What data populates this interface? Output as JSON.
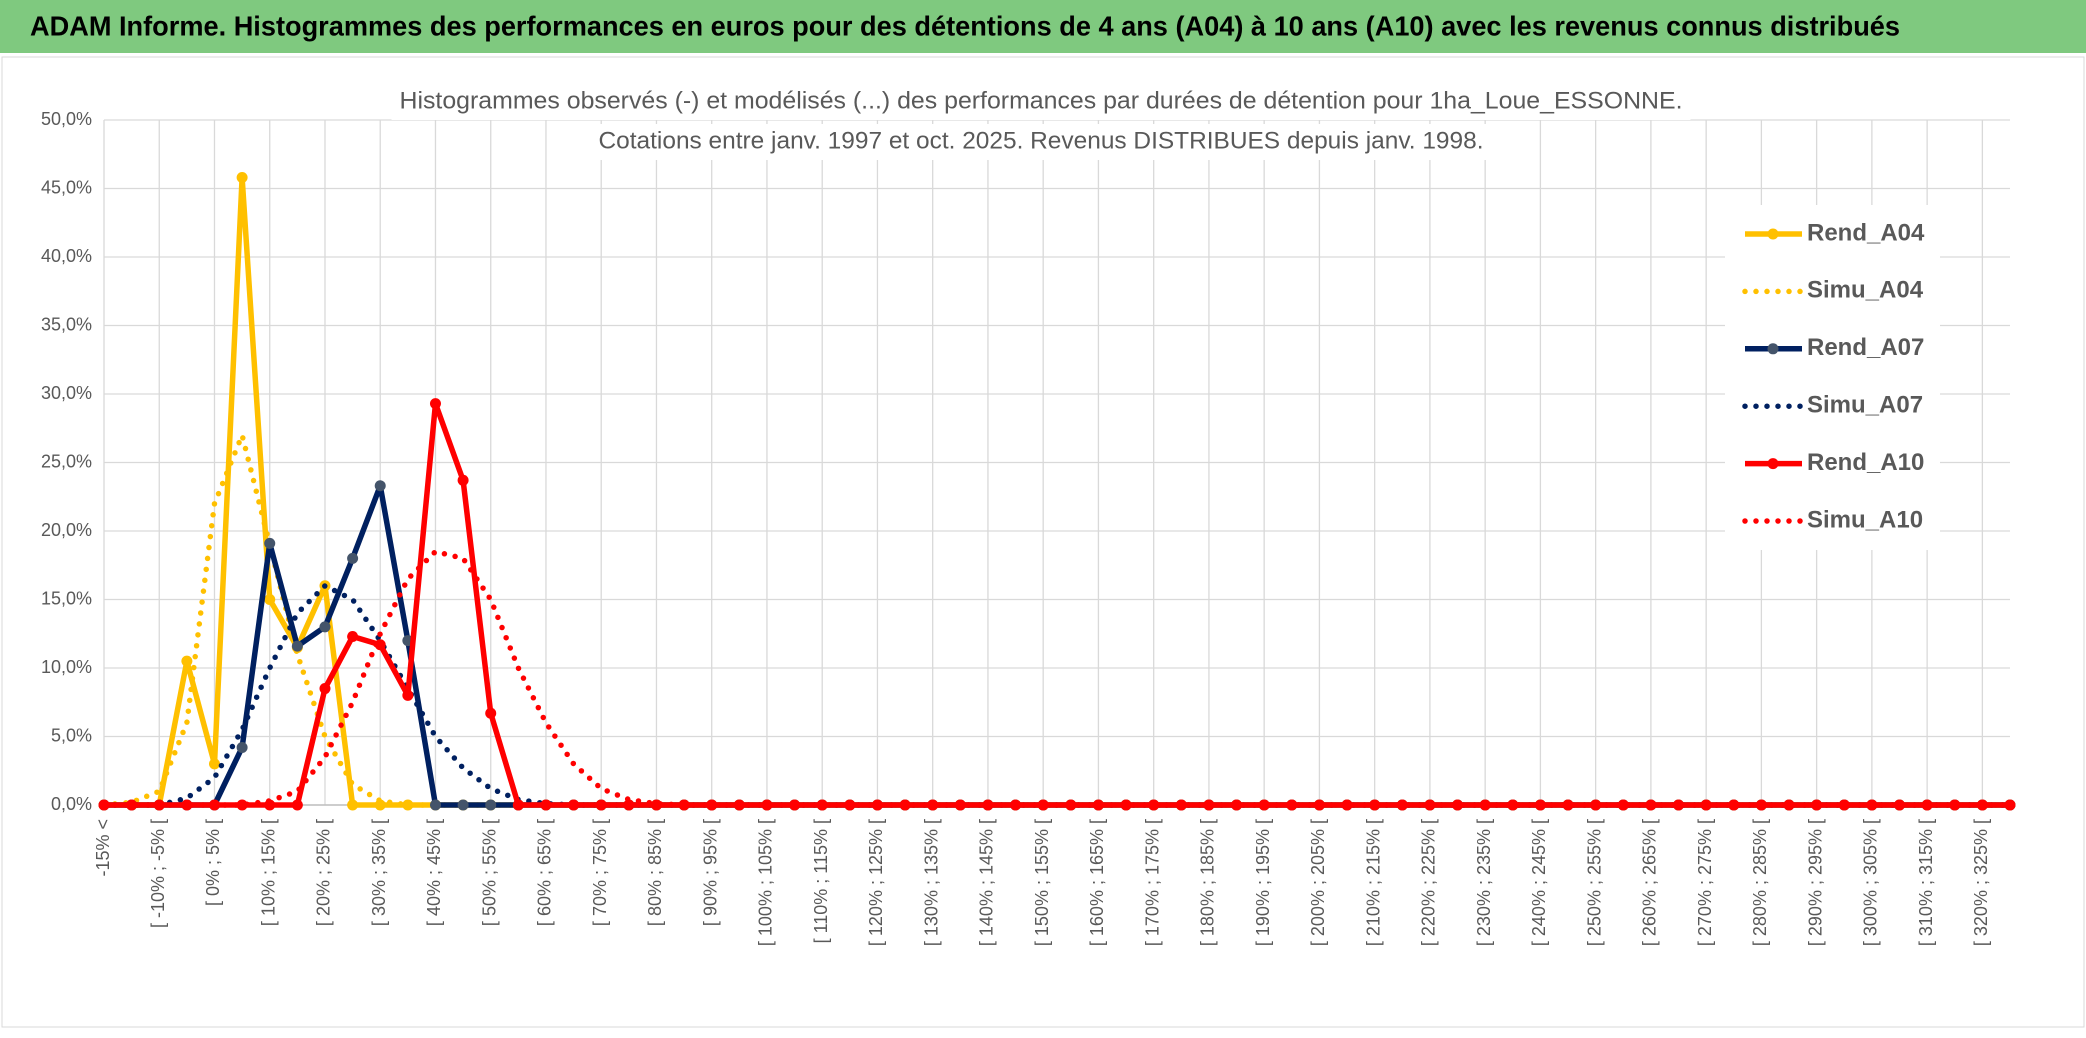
{
  "header": {
    "title": "ADAM Informe. Histogrammes des performances en euros pour des détentions de 4 ans (A04) à 10 ans (A10) avec les revenus connus distribués"
  },
  "chart_data": {
    "type": "line",
    "title": [
      "Histogrammes observés (-) et modélisés (...) des performances par durées de détention pour 1ha_Loue_ESSONNE.",
      "Cotations entre janv. 1997 et oct. 2025. Revenus DISTRIBUES depuis janv. 1998."
    ],
    "categories": [
      "-15% <",
      null,
      "[ -10% ; -5% [",
      null,
      "[ 0% ; 5% [",
      null,
      "[ 10% ; 15% [",
      null,
      "[ 20% ; 25% [",
      null,
      "[ 30% ; 35% [",
      null,
      "[ 40% ; 45% [",
      null,
      "[ 50% ; 55% [",
      null,
      "[ 60% ; 65% [",
      null,
      "[ 70% ; 75% [",
      null,
      "[ 80% ; 85% [",
      null,
      "[ 90% ; 95% [",
      null,
      "[ 100% ; 105% [",
      null,
      "[ 110% ; 115% [",
      null,
      "[ 120% ; 125% [",
      null,
      "[ 130% ; 135% [",
      null,
      "[ 140% ; 145% [",
      null,
      "[ 150% ; 155% [",
      null,
      "[ 160% ; 165% [",
      null,
      "[ 170% ; 175% [",
      null,
      "[ 180% ; 185% [",
      null,
      "[ 190% ; 195% [",
      null,
      "[ 200% ; 205% [",
      null,
      "[ 210% ; 215% [",
      null,
      "[ 220% ; 225% [",
      null,
      "[ 230% ; 235% [",
      null,
      "[ 240% ; 245% [",
      null,
      "[ 250% ; 255% [",
      null,
      "[ 260% ; 265% [",
      null,
      "[ 270% ; 275% [",
      null,
      "[ 280% ; 285% [",
      null,
      "[ 290% ; 295% [",
      null,
      "[ 300% ; 305% [",
      null,
      "[ 310% ; 315% [",
      null,
      "[ 320% ; 325% [",
      null
    ],
    "series": [
      {
        "name": "Rend_A04",
        "color": "#ffc000",
        "marker_color": "#ffc000",
        "line_style": "solid",
        "markers": true,
        "values": [
          0,
          0,
          0,
          10.5,
          3,
          45.8,
          15,
          11.5,
          16,
          0,
          0,
          0,
          0,
          0,
          0,
          0,
          0,
          0,
          0,
          0,
          0,
          0,
          0,
          0,
          0,
          0,
          0,
          0,
          0,
          0,
          0,
          0,
          0,
          0,
          0,
          0,
          0,
          0,
          0,
          0,
          0,
          0,
          0,
          0,
          0,
          0,
          0,
          0,
          0,
          0,
          0,
          0,
          0,
          0,
          0,
          0,
          0,
          0,
          0,
          0,
          0,
          0,
          0,
          0,
          0,
          0,
          0,
          0,
          0,
          0
        ]
      },
      {
        "name": "Simu_A04",
        "color": "#ffc000",
        "line_style": "dotted",
        "markers": false,
        "values": [
          0,
          0.2,
          1,
          6,
          22,
          27,
          19,
          11,
          5,
          1.5,
          0.3,
          0,
          0,
          0,
          0,
          0,
          0,
          0,
          0,
          0,
          0,
          0,
          0,
          0,
          0,
          0,
          0,
          0,
          0,
          0,
          0,
          0,
          0,
          0,
          0,
          0,
          0,
          0,
          0,
          0,
          0,
          0,
          0,
          0,
          0,
          0,
          0,
          0,
          0,
          0,
          0,
          0,
          0,
          0,
          0,
          0,
          0,
          0,
          0,
          0,
          0,
          0,
          0,
          0,
          0,
          0,
          0,
          0,
          0,
          0
        ]
      },
      {
        "name": "Rend_A07",
        "color": "#002060",
        "marker_color": "#44546a",
        "line_style": "solid",
        "markers": true,
        "values": [
          0,
          0,
          0,
          0,
          0,
          4.2,
          19.1,
          11.6,
          13,
          18,
          23.3,
          12,
          0,
          0,
          0,
          0,
          0,
          0,
          0,
          0,
          0,
          0,
          0,
          0,
          0,
          0,
          0,
          0,
          0,
          0,
          0,
          0,
          0,
          0,
          0,
          0,
          0,
          0,
          0,
          0,
          0,
          0,
          0,
          0,
          0,
          0,
          0,
          0,
          0,
          0,
          0,
          0,
          0,
          0,
          0,
          0,
          0,
          0,
          0,
          0,
          0,
          0,
          0,
          0,
          0,
          0,
          0,
          0,
          0,
          0
        ]
      },
      {
        "name": "Simu_A07",
        "color": "#002060",
        "line_style": "dotted",
        "markers": false,
        "values": [
          0,
          0,
          0,
          0.5,
          2,
          5.5,
          10,
          14,
          16,
          15,
          12,
          8.5,
          5,
          2.7,
          1.2,
          0.4,
          0.1,
          0,
          0,
          0,
          0,
          0,
          0,
          0,
          0,
          0,
          0,
          0,
          0,
          0,
          0,
          0,
          0,
          0,
          0,
          0,
          0,
          0,
          0,
          0,
          0,
          0,
          0,
          0,
          0,
          0,
          0,
          0,
          0,
          0,
          0,
          0,
          0,
          0,
          0,
          0,
          0,
          0,
          0,
          0,
          0,
          0,
          0,
          0,
          0,
          0,
          0,
          0,
          0,
          0
        ]
      },
      {
        "name": "Rend_A10",
        "color": "#ff0000",
        "marker_color": "#ff0000",
        "line_style": "solid",
        "markers": true,
        "values": [
          0,
          0,
          0,
          0,
          0,
          0,
          0,
          0,
          8.5,
          12.3,
          11.7,
          8,
          29.3,
          23.7,
          6.7,
          0,
          0,
          0,
          0,
          0,
          0,
          0,
          0,
          0,
          0,
          0,
          0,
          0,
          0,
          0,
          0,
          0,
          0,
          0,
          0,
          0,
          0,
          0,
          0,
          0,
          0,
          0,
          0,
          0,
          0,
          0,
          0,
          0,
          0,
          0,
          0,
          0,
          0,
          0,
          0,
          0,
          0,
          0,
          0,
          0,
          0,
          0,
          0,
          0,
          0,
          0,
          0,
          0,
          0,
          0
        ]
      },
      {
        "name": "Simu_A10",
        "color": "#ff0000",
        "line_style": "dotted",
        "markers": false,
        "values": [
          0,
          0,
          0,
          0,
          0,
          0,
          0.3,
          1,
          3.5,
          7.5,
          12.5,
          16.5,
          18.5,
          18,
          15,
          10,
          6,
          3,
          1.2,
          0.4,
          0.1,
          0,
          0,
          0,
          0,
          0,
          0,
          0,
          0,
          0,
          0,
          0,
          0,
          0,
          0,
          0,
          0,
          0,
          0,
          0,
          0,
          0,
          0,
          0,
          0,
          0,
          0,
          0,
          0,
          0,
          0,
          0,
          0,
          0,
          0,
          0,
          0,
          0,
          0,
          0,
          0,
          0,
          0,
          0,
          0,
          0,
          0,
          0,
          0,
          0
        ]
      }
    ],
    "ylim": [
      0,
      50
    ],
    "yticks": [
      {
        "value": 0,
        "label": "0,0%"
      },
      {
        "value": 5,
        "label": "5,0%"
      },
      {
        "value": 10,
        "label": "10,0%"
      },
      {
        "value": 15,
        "label": "15,0%"
      },
      {
        "value": 20,
        "label": "20,0%"
      },
      {
        "value": 25,
        "label": "25,0%"
      },
      {
        "value": 30,
        "label": "30,0%"
      },
      {
        "value": 35,
        "label": "35,0%"
      },
      {
        "value": 40,
        "label": "40,0%"
      },
      {
        "value": 45,
        "label": "45,0%"
      },
      {
        "value": 50,
        "label": "50,0%"
      }
    ],
    "grid": true,
    "legend": "right"
  }
}
